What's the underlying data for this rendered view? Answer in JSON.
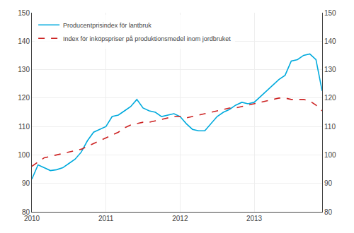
{
  "chart_data": {
    "type": "line",
    "categories": [
      "2010",
      null,
      null,
      null,
      null,
      null,
      null,
      null,
      null,
      null,
      null,
      null,
      "2011",
      null,
      null,
      null,
      null,
      null,
      null,
      null,
      null,
      null,
      null,
      null,
      "2012",
      null,
      null,
      null,
      null,
      null,
      null,
      null,
      null,
      null,
      null,
      null,
      "2013",
      null,
      null,
      null,
      null,
      null,
      null,
      null,
      null,
      null,
      null,
      null
    ],
    "series": [
      {
        "name": "Producentprisindex för lantbruk",
        "color": "#00AADD",
        "line_style": "solid",
        "values": [
          91.5,
          96.5,
          95.5,
          94.5,
          94.8,
          95.5,
          97.0,
          98.5,
          101.0,
          105.0,
          108.0,
          109.0,
          110.0,
          113.5,
          114.0,
          115.5,
          117.0,
          119.5,
          116.5,
          115.5,
          115.0,
          113.5,
          114.0,
          114.5,
          113.5,
          111.0,
          109.0,
          108.5,
          108.5,
          111.0,
          113.5,
          115.0,
          116.0,
          117.5,
          118.5,
          118.0,
          118.5,
          120.5,
          122.5,
          124.5,
          126.5,
          128.0,
          133.0,
          133.5,
          135.0,
          135.5,
          133.5,
          122.5
        ]
      },
      {
        "name": "Index för inköpspriser på produktionsmedel inom jordbruket",
        "color": "#CC2222",
        "line_style": "dashed",
        "values": [
          96.0,
          97.5,
          99.0,
          99.5,
          100.0,
          100.5,
          101.0,
          101.5,
          102.0,
          103.0,
          104.0,
          105.0,
          106.0,
          107.0,
          108.0,
          109.5,
          110.5,
          111.0,
          111.5,
          111.5,
          112.0,
          112.5,
          113.0,
          113.5,
          113.5,
          113.0,
          113.5,
          114.0,
          114.5,
          115.0,
          115.5,
          116.0,
          116.5,
          116.5,
          117.0,
          117.5,
          118.0,
          118.5,
          119.0,
          119.5,
          120.0,
          120.0,
          119.5,
          119.5,
          119.5,
          119.0,
          117.5,
          115.5
        ]
      }
    ],
    "ylim": [
      80,
      150
    ],
    "yticks": [
      80,
      90,
      100,
      110,
      120,
      130,
      140,
      150
    ],
    "y2lim": [
      80,
      150
    ],
    "y2ticks": [
      80,
      90,
      100,
      110,
      120,
      130,
      140,
      150
    ],
    "grid": true,
    "legend": "upper left"
  }
}
